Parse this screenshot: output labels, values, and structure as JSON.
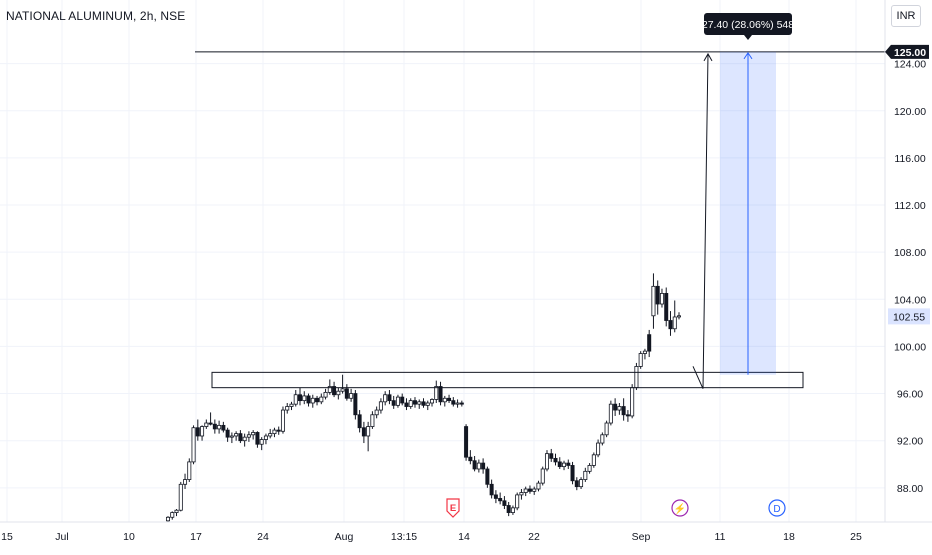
{
  "title": "NATIONAL ALUMINUM, 2h, NSE",
  "currency": "INR",
  "measure_label": "27.40 (28.06%) 548",
  "chart_data": {
    "type": "candlestick",
    "title": "NATIONAL ALUMINUM, 2h, NSE",
    "y_ticks": [
      "124.00",
      "120.00",
      "116.00",
      "112.00",
      "108.00",
      "104.00",
      "100.00",
      "96.00",
      "92.00",
      "88.00"
    ],
    "y_tick_values": [
      124,
      120,
      116,
      112,
      108,
      104,
      100,
      96,
      92,
      88
    ],
    "ylim": [
      85.1,
      129.4
    ],
    "x_ticks": [
      "15",
      "Jul",
      "10",
      "17",
      "24",
      "Aug",
      "13:15",
      "14",
      "22",
      "Sep",
      "11",
      "18",
      "25"
    ],
    "last_price": "102.55",
    "last_price_value": 102.55,
    "target_level": "125.00",
    "target_value": 125.0,
    "support_zone": [
      96.5,
      97.8
    ],
    "projection": {
      "from": 97.6,
      "to": 125.0,
      "change": 27.4,
      "percent": 28.06,
      "bars": 548
    },
    "event_markers": [
      "E",
      "⚡",
      "D"
    ],
    "grid": true,
    "series": [
      {
        "values": [
          [
            85.2,
            85.6,
            85.1,
            85.5
          ],
          [
            85.5,
            86.0,
            85.3,
            85.9
          ],
          [
            85.9,
            86.2,
            85.6,
            86.1
          ],
          [
            86.1,
            88.5,
            86.0,
            88.3
          ],
          [
            88.3,
            89.2,
            87.9,
            88.7
          ],
          [
            88.7,
            90.5,
            88.5,
            90.2
          ],
          [
            90.2,
            93.3,
            90.0,
            93.1
          ],
          [
            93.1,
            93.8,
            92.0,
            92.4
          ],
          [
            92.4,
            93.3,
            92.0,
            93.2
          ],
          [
            93.2,
            93.8,
            93.0,
            93.5
          ],
          [
            93.5,
            94.4,
            93.3,
            93.4
          ],
          [
            93.4,
            93.8,
            92.6,
            93.0
          ],
          [
            93.0,
            93.7,
            92.6,
            93.3
          ],
          [
            93.3,
            93.6,
            92.7,
            92.9
          ],
          [
            92.9,
            93.1,
            91.9,
            92.3
          ],
          [
            92.3,
            92.7,
            91.8,
            92.4
          ],
          [
            92.4,
            92.8,
            92.0,
            92.6
          ],
          [
            92.6,
            92.9,
            91.8,
            92.0
          ],
          [
            92.0,
            92.6,
            91.5,
            92.3
          ],
          [
            92.3,
            92.8,
            91.9,
            92.5
          ],
          [
            92.5,
            92.9,
            92.1,
            92.7
          ],
          [
            92.7,
            92.8,
            91.4,
            91.7
          ],
          [
            91.7,
            92.3,
            91.2,
            92.1
          ],
          [
            92.1,
            92.6,
            91.7,
            92.4
          ],
          [
            92.4,
            93.0,
            92.2,
            92.6
          ],
          [
            92.6,
            93.1,
            92.3,
            92.9
          ],
          [
            92.9,
            93.2,
            92.5,
            92.8
          ],
          [
            92.8,
            94.9,
            92.6,
            94.6
          ],
          [
            94.6,
            95.2,
            94.3,
            94.9
          ],
          [
            94.9,
            95.3,
            94.6,
            95.1
          ],
          [
            95.1,
            96.3,
            94.9,
            95.9
          ],
          [
            95.9,
            96.5,
            95.0,
            95.4
          ],
          [
            95.4,
            96.2,
            95.1,
            95.8
          ],
          [
            95.8,
            96.0,
            94.9,
            95.2
          ],
          [
            95.2,
            95.9,
            94.8,
            95.6
          ],
          [
            95.6,
            95.8,
            95.0,
            95.3
          ],
          [
            95.3,
            96.0,
            95.1,
            95.7
          ],
          [
            95.7,
            96.4,
            95.5,
            96.1
          ],
          [
            96.1,
            97.2,
            95.9,
            96.6
          ],
          [
            96.6,
            97.0,
            95.7,
            95.9
          ],
          [
            95.9,
            96.5,
            95.5,
            96.2
          ],
          [
            96.2,
            97.6,
            96.0,
            96.4
          ],
          [
            96.4,
            96.8,
            95.4,
            95.6
          ],
          [
            95.6,
            96.4,
            95.3,
            96.0
          ],
          [
            96.0,
            96.3,
            93.8,
            94.2
          ],
          [
            94.2,
            94.6,
            92.7,
            93.1
          ],
          [
            93.1,
            93.6,
            91.8,
            92.4
          ],
          [
            92.4,
            93.6,
            91.1,
            93.2
          ],
          [
            93.2,
            94.5,
            93.0,
            94.2
          ],
          [
            94.2,
            94.9,
            93.9,
            94.6
          ],
          [
            94.6,
            95.6,
            94.3,
            95.3
          ],
          [
            95.3,
            96.2,
            95.0,
            95.9
          ],
          [
            95.9,
            96.3,
            95.1,
            95.4
          ],
          [
            95.4,
            95.8,
            94.7,
            95.0
          ],
          [
            95.0,
            95.9,
            94.8,
            95.7
          ],
          [
            95.7,
            96.0,
            95.0,
            95.2
          ],
          [
            95.2,
            95.6,
            94.6,
            94.9
          ],
          [
            94.9,
            95.6,
            94.7,
            95.4
          ],
          [
            95.4,
            95.7,
            94.8,
            95.1
          ],
          [
            95.1,
            95.5,
            94.7,
            95.3
          ],
          [
            95.3,
            95.6,
            94.8,
            95.0
          ],
          [
            95.0,
            95.4,
            94.6,
            95.2
          ],
          [
            95.2,
            95.6,
            94.9,
            95.5
          ],
          [
            95.5,
            97.1,
            95.2,
            96.6
          ],
          [
            96.6,
            97.0,
            95.0,
            95.3
          ],
          [
            95.3,
            95.8,
            94.9,
            95.6
          ],
          [
            95.6,
            95.9,
            95.2,
            95.4
          ],
          [
            95.4,
            95.7,
            94.9,
            95.1
          ],
          [
            95.1,
            95.5,
            94.8,
            95.2
          ],
          [
            95.2,
            95.4,
            94.9,
            95.1
          ],
          [
            93.2,
            93.4,
            90.3,
            90.6
          ],
          [
            90.6,
            91.2,
            90.0,
            90.3
          ],
          [
            90.3,
            90.7,
            89.4,
            89.6
          ],
          [
            89.6,
            90.4,
            89.3,
            90.1
          ],
          [
            90.1,
            90.5,
            89.2,
            89.6
          ],
          [
            89.6,
            89.8,
            88.0,
            88.3
          ],
          [
            88.3,
            88.7,
            87.1,
            87.4
          ],
          [
            87.4,
            87.8,
            86.7,
            87.1
          ],
          [
            87.1,
            87.6,
            86.6,
            86.9
          ],
          [
            86.9,
            87.3,
            86.2,
            86.5
          ],
          [
            86.5,
            86.8,
            85.6,
            85.9
          ],
          [
            85.9,
            86.5,
            85.7,
            86.3
          ],
          [
            86.3,
            87.6,
            86.1,
            87.4
          ],
          [
            87.4,
            87.9,
            87.0,
            87.6
          ],
          [
            87.6,
            88.1,
            87.3,
            87.9
          ],
          [
            87.9,
            88.2,
            87.5,
            87.7
          ],
          [
            87.7,
            88.1,
            87.4,
            87.9
          ],
          [
            87.9,
            88.6,
            87.7,
            88.4
          ],
          [
            88.4,
            89.8,
            88.2,
            89.6
          ],
          [
            89.6,
            91.2,
            89.4,
            90.9
          ],
          [
            90.9,
            91.3,
            90.2,
            90.5
          ],
          [
            90.5,
            90.9,
            89.9,
            90.2
          ],
          [
            90.2,
            90.6,
            89.6,
            89.8
          ],
          [
            89.8,
            90.3,
            89.5,
            90.1
          ],
          [
            90.1,
            90.4,
            89.6,
            89.9
          ],
          [
            89.9,
            90.2,
            88.3,
            88.6
          ],
          [
            88.6,
            88.9,
            87.8,
            88.1
          ],
          [
            88.1,
            88.9,
            87.9,
            88.7
          ],
          [
            88.7,
            89.7,
            88.5,
            89.4
          ],
          [
            89.4,
            90.1,
            89.2,
            89.9
          ],
          [
            89.9,
            91.0,
            89.7,
            90.8
          ],
          [
            90.8,
            92.1,
            90.6,
            91.8
          ],
          [
            91.8,
            92.7,
            91.6,
            92.5
          ],
          [
            92.5,
            93.7,
            92.3,
            93.5
          ],
          [
            93.5,
            95.4,
            93.3,
            95.1
          ],
          [
            95.1,
            95.6,
            94.1,
            94.6
          ],
          [
            94.6,
            95.2,
            94.2,
            94.9
          ],
          [
            94.9,
            95.6,
            93.7,
            94.2
          ],
          [
            94.2,
            94.6,
            93.6,
            94.1
          ],
          [
            94.1,
            96.8,
            93.9,
            96.5
          ],
          [
            96.5,
            98.6,
            96.3,
            98.3
          ],
          [
            98.3,
            99.6,
            98.1,
            99.4
          ],
          [
            99.4,
            99.8,
            98.9,
            99.6
          ],
          [
            101.0,
            101.4,
            99.1,
            99.6
          ],
          [
            102.6,
            106.2,
            101.5,
            105.1
          ],
          [
            105.1,
            105.6,
            102.7,
            103.6
          ],
          [
            103.6,
            104.9,
            103.3,
            104.5
          ],
          [
            104.5,
            105.0,
            101.7,
            102.2
          ],
          [
            102.2,
            103.0,
            100.9,
            101.5
          ],
          [
            101.5,
            103.9,
            101.2,
            102.5
          ],
          [
            102.5,
            102.9,
            102.3,
            102.6
          ]
        ]
      }
    ]
  }
}
